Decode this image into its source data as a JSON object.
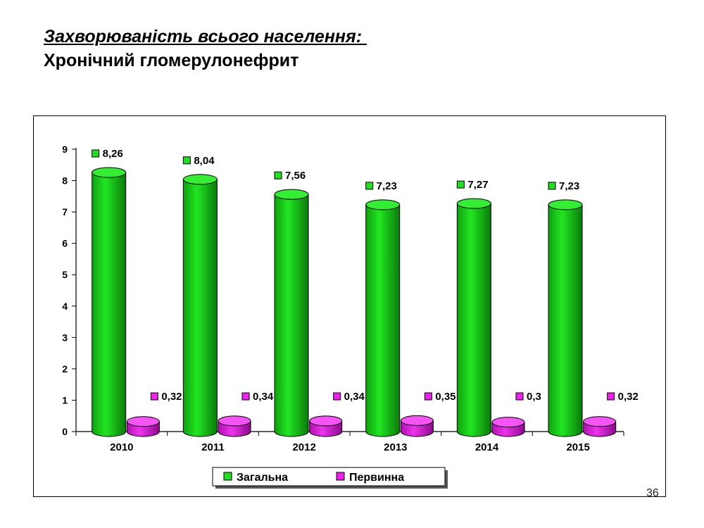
{
  "slide": {
    "title_line1": "Захворюваність всього населення: ",
    "title_line2": "Хронічний гломерулонефрит",
    "page_number": "36"
  },
  "chart_data": {
    "type": "bar",
    "categories": [
      "2010",
      "2011",
      "2012",
      "2013",
      "2014",
      "2015"
    ],
    "series": [
      {
        "name": "Загальна",
        "values": [
          8.26,
          8.04,
          7.56,
          7.23,
          7.27,
          7.23
        ],
        "labels": [
          "8,26",
          "8,04",
          "7,56",
          "7,23",
          "7,27",
          "7,23"
        ],
        "color": "#22dd22"
      },
      {
        "name": "Первинна",
        "values": [
          0.32,
          0.34,
          0.34,
          0.35,
          0.3,
          0.32
        ],
        "labels": [
          "0,32",
          "0,34",
          "0,34",
          "0,35",
          "0,3",
          "0,32"
        ],
        "color": "#ee22ee"
      }
    ],
    "yticks": [
      "0",
      "1",
      "2",
      "3",
      "4",
      "5",
      "6",
      "7",
      "8",
      "9"
    ],
    "ylim": [
      0,
      9
    ],
    "legend_position": "bottom",
    "bar_shape": "cylinder"
  }
}
